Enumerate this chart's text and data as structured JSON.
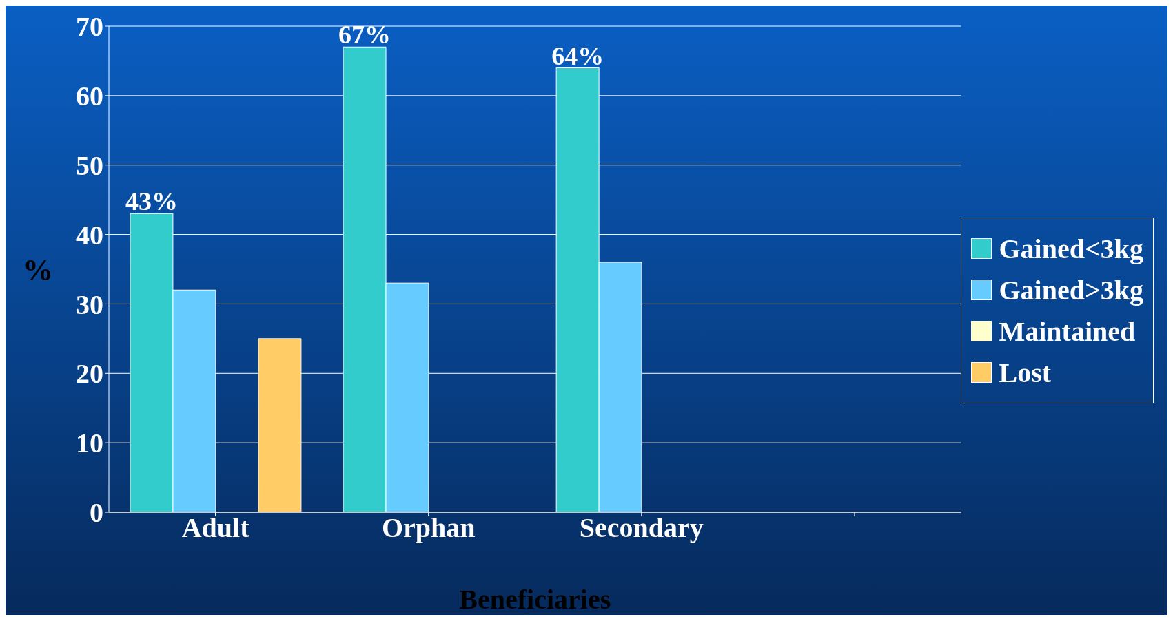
{
  "chart_data": {
    "type": "bar",
    "xlabel": "Beneficiaries",
    "ylabel": "%",
    "categories": [
      "Adult",
      "Orphan",
      "Secondary",
      null
    ],
    "series": [
      {
        "name": "Gained<3kg",
        "color": "#33cccc",
        "values": [
          43,
          67,
          64,
          null
        ],
        "value_labels": [
          "43%",
          "67%",
          "64%",
          null
        ]
      },
      {
        "name": "Gained>3kg",
        "color": "#66ccff",
        "values": [
          32,
          33,
          36,
          null
        ]
      },
      {
        "name": "Maintained",
        "color": "#ffffcc",
        "values": [
          0,
          0,
          0,
          null
        ]
      },
      {
        "name": "Lost",
        "color": "#ffcc66",
        "values": [
          25,
          0,
          0,
          null
        ]
      }
    ],
    "ylim": [
      0,
      70
    ],
    "yticks": [
      0,
      10,
      20,
      30,
      40,
      50,
      60,
      70
    ],
    "grid": "y",
    "legend": "right"
  }
}
